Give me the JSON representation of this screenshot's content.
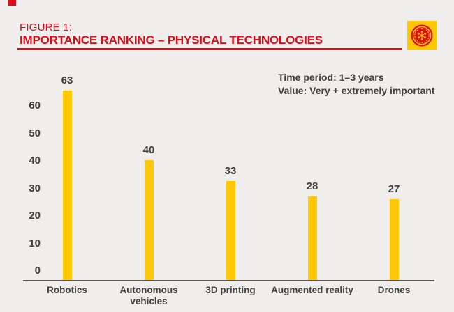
{
  "page": {
    "background": "#efeeec"
  },
  "header": {
    "eyebrow": "FIGURE 1:",
    "title": "IMPORTANCE RANKING – PHYSICAL TECHNOLOGIES",
    "accent_color": "#e10a17",
    "logo": {
      "icon": "emblem-logo",
      "bg_color": "#ffc806",
      "fg_color": "#e10a17"
    }
  },
  "annotation": {
    "line1": "Time period: 1–3 years",
    "line2": "Value: Very + extremely important"
  },
  "chart_data": {
    "type": "bar",
    "title": "Importance ranking – physical technologies",
    "categories": [
      "Robotics",
      "Autonomous vehicles",
      "3D printing",
      "Augmented reality",
      "Drones"
    ],
    "values": [
      63,
      40,
      33,
      28,
      27
    ],
    "value_labels": [
      "63",
      "40",
      "33",
      "28",
      "27"
    ],
    "yticks": [
      0,
      10,
      20,
      30,
      40,
      50,
      60
    ],
    "ylim": [
      0,
      65
    ],
    "xlabel": "",
    "ylabel": "",
    "grid": false,
    "legend": null,
    "bar_color": "#ffc806",
    "axis_color": "#5e574d",
    "text_color": "#434040"
  }
}
